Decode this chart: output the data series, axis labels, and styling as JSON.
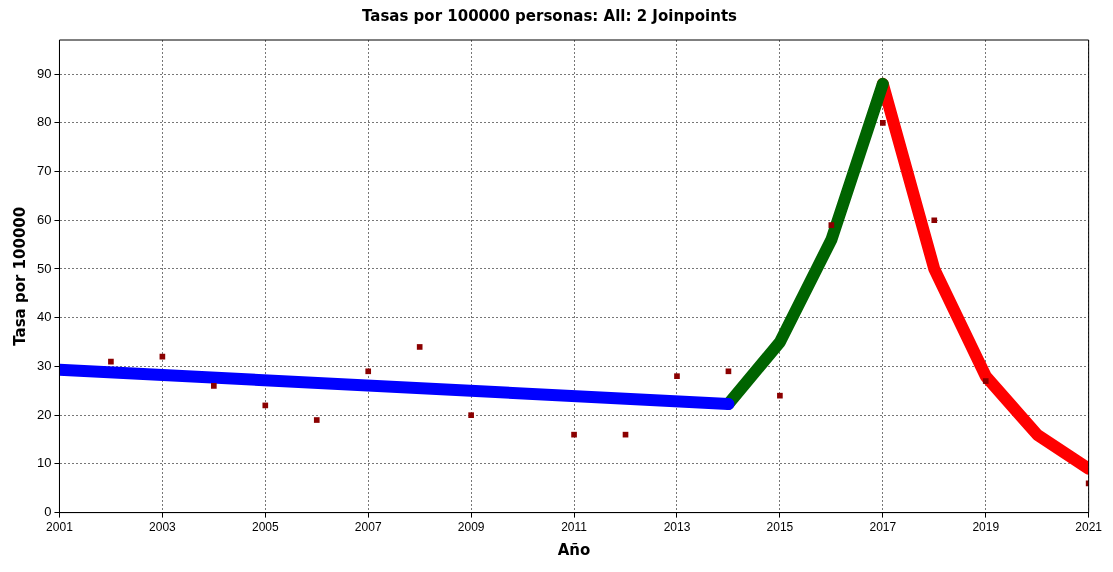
{
  "chart_data": {
    "type": "line",
    "title": "Tasas por 100000 personas: All: 2 Joinpoints",
    "xlabel": "Año",
    "ylabel": "Tasa por 100000",
    "xlim": [
      2001,
      2021
    ],
    "xticks": [
      2001,
      2003,
      2005,
      2007,
      2009,
      2011,
      2013,
      2015,
      2017,
      2019,
      2021
    ],
    "ylim": [
      0,
      97
    ],
    "yticks": [
      0,
      10,
      20,
      30,
      40,
      50,
      60,
      70,
      80,
      90
    ],
    "grid": true,
    "legend": false,
    "series": [
      {
        "type": "scatter",
        "marker": "square",
        "color": "#8b0000",
        "x": [
          2002,
          2003,
          2004,
          2005,
          2006,
          2007,
          2008,
          2009,
          2011,
          2012,
          2013,
          2014,
          2015,
          2016,
          2017,
          2018,
          2019,
          2021
        ],
        "values": [
          31,
          32,
          26,
          22,
          19,
          29,
          34,
          20,
          16,
          16,
          28,
          29,
          24,
          59,
          80,
          60,
          27,
          6
        ]
      },
      {
        "type": "line",
        "color": "#0000ff",
        "x": [
          2001,
          2014
        ],
        "values": [
          29.3,
          22.3
        ]
      },
      {
        "type": "line",
        "color": "#006400",
        "x": [
          2014,
          2015,
          2016,
          2017
        ],
        "values": [
          22.3,
          35,
          56,
          88
        ]
      },
      {
        "type": "line",
        "color": "#ff0000",
        "x": [
          2017,
          2018,
          2019,
          2020,
          2021
        ],
        "values": [
          88,
          50,
          28,
          16,
          9
        ]
      }
    ]
  }
}
